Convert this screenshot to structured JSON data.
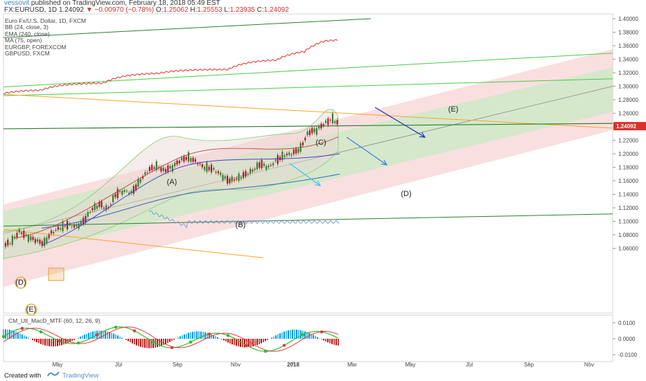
{
  "header": {
    "username": "vessovit",
    "published_text": "published on TradingView.com, February 18, 2018 05:49 EST",
    "symbol": "FX:EURUSD, 1D",
    "last": "1.24092",
    "change": "▼ −0.00970 (−0.78%)",
    "ohlc_o_label": "O:",
    "ohlc_o": "1.25062",
    "ohlc_h_label": "H:",
    "ohlc_h": "1.25553",
    "ohlc_l_label": "L:",
    "ohlc_l": "1.23935",
    "ohlc_c_label": "C:",
    "ohlc_c": "1.24092"
  },
  "legend": {
    "line1": "Euro Fx/U.S. Dollar, 1D, FXCM",
    "line2": "BB (24, close, 3)",
    "line3": "EMA (240, close)",
    "line4": "MA (75, open)",
    "line5": "EURGBP, FOREXCOM",
    "line6": "GBPUSD, FXCM"
  },
  "macd": {
    "title": "CM_Ult_MacD_MTF (60, 12, 26, 9)"
  },
  "footer": {
    "created": "Created with",
    "brand": "TradingView"
  },
  "colors": {
    "candle_up": "#3a7a37",
    "candle_down": "#a51c24",
    "price_label_bg": "#d9322b",
    "gbpusd": "#e0302a",
    "eurgbp": "#6f9bd1",
    "channel_red": "#f6c4c6",
    "channel_green": "#c8ebc5",
    "green_line": "#44cc44",
    "orange_line": "#f5a623",
    "dark_green_line": "#2d7d2d",
    "arrow_blue": "#1a2db8",
    "arrow_cyan": "#33c6f0"
  },
  "chart_data": {
    "type": "line",
    "price_axis": {
      "ticks": [
        "1.40000",
        "1.38000",
        "1.36000",
        "1.34000",
        "1.32000",
        "1.30000",
        "1.28000",
        "1.26000",
        "1.24000",
        "1.22000",
        "1.20000",
        "1.18000",
        "1.16000",
        "1.14000",
        "1.12000",
        "1.10000",
        "1.08000",
        "1.06000"
      ],
      "tick_values": [
        1.4,
        1.38,
        1.36,
        1.34,
        1.32,
        1.3,
        1.28,
        1.26,
        1.24,
        1.22,
        1.2,
        1.18,
        1.16,
        1.14,
        1.12,
        1.1,
        1.08,
        1.06
      ],
      "last_price_label": "1.24092",
      "last_price": 1.24092
    },
    "time_axis": {
      "labels": [
        "May",
        "Jul",
        "Sep",
        "Nov",
        "2018",
        "Mar",
        "May",
        "Jul",
        "Sep",
        "Nov"
      ]
    },
    "macd_axis": {
      "ticks": [
        "0.0100",
        "0.0000",
        "-0.0100"
      ],
      "tick_values": [
        0.01,
        0.0,
        -0.01
      ]
    },
    "eurusd_path": [
      [
        0,
        1.063
      ],
      [
        8,
        1.07
      ],
      [
        15,
        1.085
      ],
      [
        22,
        1.077
      ],
      [
        29,
        1.072
      ],
      [
        36,
        1.067
      ],
      [
        43,
        1.083
      ],
      [
        50,
        1.09
      ],
      [
        57,
        1.095
      ],
      [
        64,
        1.092
      ],
      [
        71,
        1.1
      ],
      [
        78,
        1.118
      ],
      [
        85,
        1.125
      ],
      [
        92,
        1.118
      ],
      [
        99,
        1.14
      ],
      [
        106,
        1.145
      ],
      [
        113,
        1.142
      ],
      [
        120,
        1.16
      ],
      [
        127,
        1.175
      ],
      [
        134,
        1.182
      ],
      [
        141,
        1.175
      ],
      [
        148,
        1.18
      ],
      [
        155,
        1.19
      ],
      [
        162,
        1.195
      ],
      [
        169,
        1.188
      ],
      [
        176,
        1.18
      ],
      [
        183,
        1.178
      ],
      [
        190,
        1.17
      ],
      [
        197,
        1.16
      ],
      [
        204,
        1.163
      ],
      [
        211,
        1.168
      ],
      [
        218,
        1.175
      ],
      [
        225,
        1.185
      ],
      [
        232,
        1.18
      ],
      [
        239,
        1.19
      ],
      [
        246,
        1.198
      ],
      [
        253,
        1.2
      ],
      [
        260,
        1.208
      ],
      [
        267,
        1.232
      ],
      [
        274,
        1.235
      ],
      [
        281,
        1.245
      ],
      [
        288,
        1.252
      ],
      [
        293,
        1.241
      ]
    ],
    "annotations": [
      "(A)",
      "(B)",
      "(C)",
      "(D)",
      "(E)",
      "(D)",
      "(E)"
    ]
  }
}
